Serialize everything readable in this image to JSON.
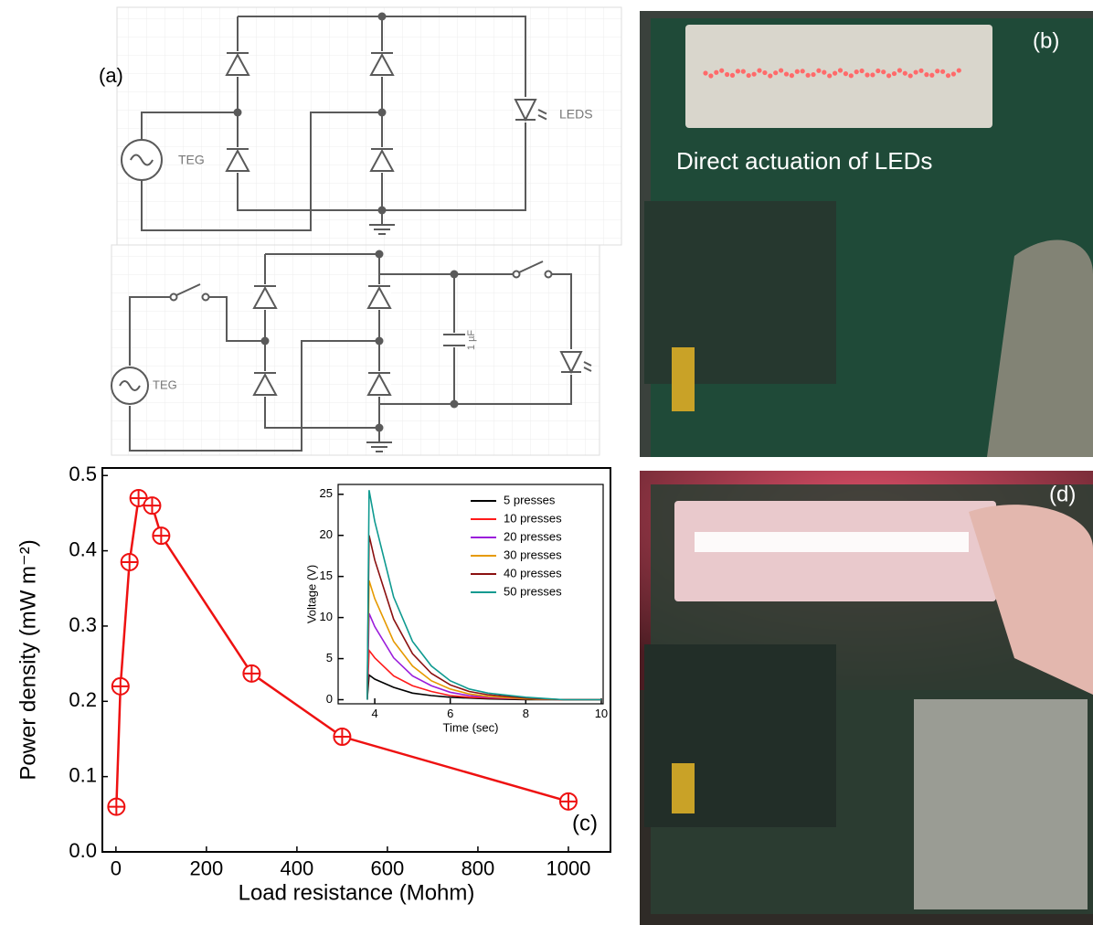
{
  "panels": {
    "a": "(a)",
    "b": "(b)",
    "d": "(d)"
  },
  "circuit": {
    "top_source": "TEG",
    "top_load": "LEDS",
    "bottom_source": "TEG",
    "capacitor": "1 µF"
  },
  "photo_b_caption": "Direct actuation of LEDs",
  "chart_data": [
    {
      "type": "line",
      "annotation": "(c)",
      "x_label": "Load resistance (Mohm)",
      "y_label": "Power density (mW m⁻²)",
      "x": [
        1,
        10,
        30,
        50,
        80,
        100,
        300,
        500,
        1000
      ],
      "values": [
        0.06,
        0.22,
        0.385,
        0.47,
        0.46,
        0.42,
        0.237,
        0.153,
        0.067
      ],
      "color": "#ee1111",
      "marker": "circled-plus",
      "xlim": [
        -30,
        1093
      ],
      "xticks": [
        0,
        200,
        400,
        600,
        800,
        1000
      ],
      "ylim": [
        0,
        0.51
      ],
      "yticks": [
        {
          "value": 0,
          "label": "0.0"
        },
        0.1,
        0.2,
        0.3,
        0.4,
        0.5
      ]
    },
    {
      "type": "line",
      "x_label": "Time (sec)",
      "y_label": "Voltage (V)",
      "legend": "upper right",
      "x": [
        3.8,
        3.85,
        4,
        4.5,
        5,
        5.5,
        6,
        6.5,
        7,
        8,
        9,
        10
      ],
      "series": [
        {
          "name": "5 presses",
          "color": "#000000",
          "values": [
            0,
            3,
            2.5,
            1.5,
            0.8,
            0.5,
            0.3,
            0.2,
            0.1,
            0,
            0,
            0
          ]
        },
        {
          "name": "10 presses",
          "color": "#ff1a1a",
          "values": [
            0,
            6,
            5.1,
            2.9,
            1.7,
            1,
            0.5,
            0.3,
            0.2,
            0.1,
            0,
            0
          ]
        },
        {
          "name": "20 presses",
          "color": "#9b1ddb",
          "values": [
            0,
            10.5,
            8.9,
            5.1,
            2.9,
            1.7,
            0.9,
            0.5,
            0.3,
            0.1,
            0,
            0
          ]
        },
        {
          "name": "30 presses",
          "color": "#e69a00",
          "values": [
            0,
            14.5,
            12.3,
            7.1,
            4.1,
            2.3,
            1.3,
            0.7,
            0.4,
            0.1,
            0,
            0
          ]
        },
        {
          "name": "40 presses",
          "color": "#8b1010",
          "values": [
            0,
            20,
            17,
            9.8,
            5.6,
            3.2,
            1.8,
            1,
            0.6,
            0.2,
            0,
            0
          ]
        },
        {
          "name": "50 presses",
          "color": "#0f9a90",
          "values": [
            0,
            25.5,
            21.7,
            12.5,
            7.1,
            4.1,
            2.3,
            1.3,
            0.8,
            0.3,
            0,
            0
          ]
        }
      ],
      "xlim": [
        3.03,
        10.05
      ],
      "xticks": [
        4,
        6,
        8,
        10
      ],
      "ylim": [
        -0.5,
        26.2
      ],
      "yticks": [
        0,
        5,
        10,
        15,
        20,
        25
      ]
    }
  ]
}
